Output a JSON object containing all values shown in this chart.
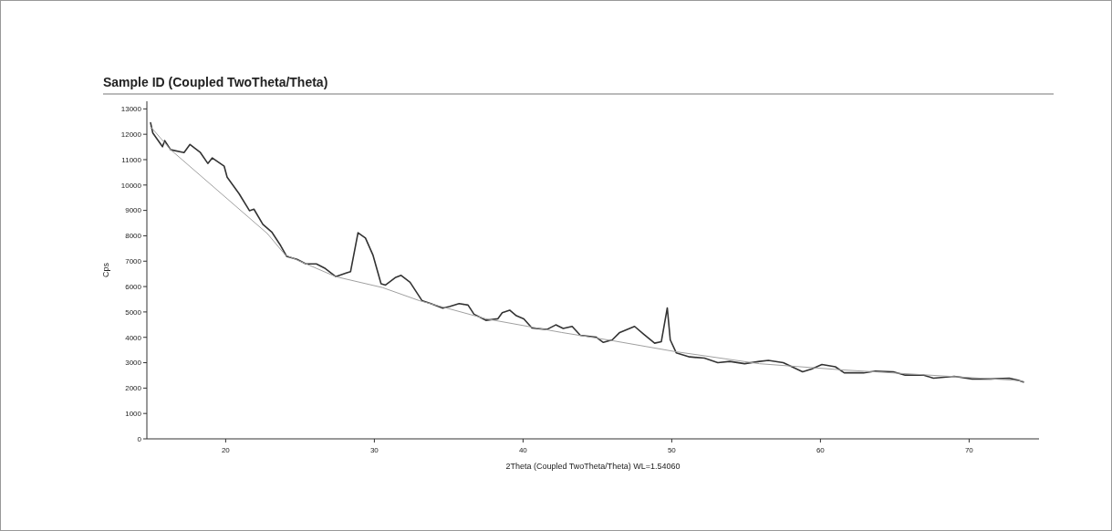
{
  "chart_data": {
    "type": "line",
    "title": "Sample ID (Coupled TwoTheta/Theta)",
    "xlabel": "2Theta (Coupled TwoTheta/Theta) WL=1.54060",
    "ylabel": "Cps",
    "xlim": [
      14.7,
      74.7
    ],
    "ylim": [
      0,
      13300
    ],
    "xticks": [
      20,
      30,
      40,
      50,
      60,
      70
    ],
    "yticks": [
      0,
      1000,
      2000,
      3000,
      4000,
      5000,
      6000,
      7000,
      8000,
      9000,
      10000,
      11000,
      12000,
      13000
    ],
    "grid": false,
    "marker": "none",
    "line_style": "solid",
    "series": [
      {
        "color": "#333333",
        "x": [
          14.95,
          15.1,
          15.75,
          15.9,
          16.3,
          17.2,
          17.6,
          18.3,
          18.8,
          19.1,
          19.9,
          20.1,
          20.9,
          21.6,
          21.9,
          22.5,
          23.1,
          23.7,
          24.1,
          24.8,
          25.4,
          26.1,
          26.7,
          27.4,
          28.1,
          28.4,
          28.9,
          29.4,
          29.9,
          30.45,
          30.75,
          31.4,
          31.8,
          32.4,
          33.2,
          33.8,
          34.6,
          35.05,
          35.7,
          36.3,
          36.7,
          37.5,
          38.3,
          38.6,
          39.1,
          39.55,
          40.05,
          40.6,
          41.6,
          42.2,
          42.7,
          43.3,
          43.85,
          44.9,
          45.4,
          46.0,
          46.5,
          47.5,
          48.1,
          48.85,
          49.3,
          49.7,
          49.9,
          50.3,
          51.2,
          52.2,
          53.1,
          53.9,
          54.9,
          55.9,
          56.5,
          57.5,
          58.8,
          59.4,
          60.1,
          61.0,
          61.6,
          62.9,
          63.7,
          64.9,
          65.7,
          66.95,
          67.6,
          69.0,
          70.2,
          71.45,
          72.7,
          73.3,
          73.65
        ],
        "values": [
          12450,
          12050,
          11510,
          11750,
          11390,
          11280,
          11600,
          11280,
          10850,
          11070,
          10740,
          10310,
          9660,
          8990,
          9050,
          8450,
          8150,
          7610,
          7190,
          7070,
          6890,
          6890,
          6710,
          6390,
          6530,
          6590,
          8120,
          7910,
          7250,
          6110,
          6060,
          6350,
          6440,
          6170,
          5450,
          5330,
          5150,
          5210,
          5330,
          5270,
          4910,
          4670,
          4730,
          4970,
          5070,
          4850,
          4730,
          4370,
          4310,
          4490,
          4350,
          4430,
          4080,
          4010,
          3800,
          3900,
          4190,
          4430,
          4130,
          3770,
          3830,
          5160,
          3900,
          3390,
          3230,
          3180,
          3000,
          3050,
          2960,
          3050,
          3090,
          3000,
          2640,
          2750,
          2930,
          2840,
          2600,
          2600,
          2670,
          2640,
          2510,
          2510,
          2390,
          2460,
          2360,
          2360,
          2390,
          2310,
          2240
        ]
      },
      {
        "color": "#a0a0a0",
        "x": [
          14.95,
          16.3,
          22.8,
          24.0,
          27.4,
          30.55,
          33.0,
          37.5,
          42.6,
          46.1,
          50.2,
          55.9,
          61.4,
          73.0,
          73.65
        ],
        "values": [
          12300,
          11390,
          8090,
          7250,
          6390,
          5960,
          5450,
          4730,
          4190,
          3860,
          3440,
          2960,
          2720,
          2310,
          2260
        ]
      }
    ]
  }
}
